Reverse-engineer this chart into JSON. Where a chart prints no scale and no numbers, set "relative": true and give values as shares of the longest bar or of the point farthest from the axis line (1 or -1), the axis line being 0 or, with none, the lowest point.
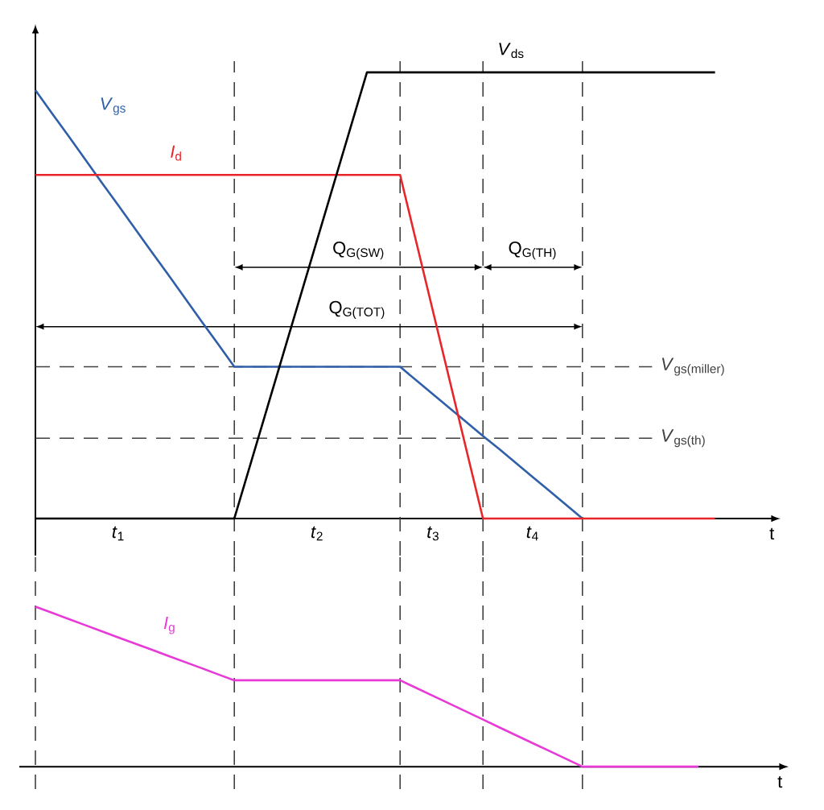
{
  "chart_data": [
    {
      "type": "line",
      "relative": true,
      "xlabel": "t",
      "categories": [
        null,
        null,
        null,
        null,
        null,
        "*t*$_{1}$",
        null,
        null,
        null,
        null,
        null,
        null,
        null,
        null,
        null,
        null,
        null,
        "*t*$_{2}$",
        null,
        null,
        null,
        null,
        null,
        null,
        "*t*$_{3}$",
        null,
        null,
        null,
        null,
        null,
        "*t*$_{4}$",
        null,
        null,
        null,
        null,
        null,
        null,
        null,
        null,
        null,
        null,
        null
      ],
      "tick_labels": "x",
      "legend": false,
      "marker": "none",
      "line_style": "solid",
      "grid": "x",
      "series": [
        {
          "name": "*V*$_{gs}$",
          "color": "#2f5fa8",
          "values": [
            0.96,
            0.908,
            0.857,
            0.805,
            0.753,
            0.702,
            0.65,
            0.598,
            0.547,
            0.495,
            0.443,
            0.392,
            0.34,
            0.34,
            0.34,
            0.34,
            0.34,
            0.34,
            0.34,
            0.34,
            0.34,
            0.34,
            0.34,
            0.309,
            0.278,
            0.247,
            0.216,
            0.185,
            0.155,
            0.124,
            0.093,
            0.062,
            0.031,
            0,
            null,
            null,
            null,
            null,
            null,
            null,
            null,
            null
          ]
        },
        {
          "name": "*I*$_{d}$",
          "color": "#e8262a",
          "values": [
            0.77,
            0.77,
            0.77,
            0.77,
            0.77,
            0.77,
            0.77,
            0.77,
            0.77,
            0.77,
            0.77,
            0.77,
            0.77,
            0.77,
            0.77,
            0.77,
            0.77,
            0.77,
            0.77,
            0.77,
            0.77,
            0.77,
            0.77,
            0.616,
            0.462,
            0.308,
            0.154,
            0,
            0,
            0,
            0,
            0,
            0,
            0,
            0,
            0,
            0,
            0,
            0,
            0,
            0,
            0
          ]
        },
        {
          "name": "*V*$_{ds}$",
          "color": "#000000",
          "values": [
            0,
            0,
            0,
            0,
            0,
            0,
            0,
            0,
            0,
            0,
            0,
            0,
            0,
            0.125,
            0.25,
            0.375,
            0.5,
            0.625,
            0.75,
            0.875,
            1,
            1,
            1,
            1,
            1,
            1,
            1,
            1,
            1,
            1,
            1,
            1,
            1,
            1,
            1,
            1,
            1,
            1,
            1,
            1,
            1,
            1
          ]
        }
      ],
      "ref_lines": [
        {
          "axis": "y",
          "value": 0.34,
          "label": "*V*$_{gs(miller)}$",
          "line_style": "dashed"
        },
        {
          "axis": "y",
          "value": 0.18,
          "label": "*V*$_{gs(th)}$",
          "line_style": "dashed"
        }
      ],
      "annotations": [
        "Q$_{G(SW)}$",
        "Q$_{G(TH)}$",
        "Q$_{G(TOT)}$"
      ]
    },
    {
      "type": "line",
      "relative": true,
      "xlabel": "t",
      "categories": [
        null,
        null,
        null,
        null,
        null,
        null,
        null,
        null,
        null,
        null,
        null,
        null,
        null,
        null,
        null,
        null,
        null,
        null,
        null,
        null,
        null,
        null,
        null,
        null,
        null,
        null,
        null,
        null,
        null,
        null,
        null,
        null,
        null,
        null,
        null,
        null,
        null,
        null,
        null,
        null,
        null
      ],
      "tick_labels": false,
      "legend": false,
      "marker": "none",
      "line_style": "solid",
      "grid": "x",
      "series": [
        {
          "name": "*I*$_{g}$",
          "color": "#e83ad6",
          "values": [
            1,
            0.962,
            0.923,
            0.885,
            0.847,
            0.808,
            0.77,
            0.732,
            0.693,
            0.655,
            0.617,
            0.578,
            0.54,
            0.54,
            0.54,
            0.54,
            0.54,
            0.54,
            0.54,
            0.54,
            0.54,
            0.54,
            0.54,
            0.491,
            0.442,
            0.393,
            0.344,
            0.295,
            0.245,
            0.196,
            0.147,
            0.098,
            0.049,
            0,
            0,
            0,
            0,
            0,
            0,
            0,
            0
          ]
        }
      ]
    }
  ]
}
